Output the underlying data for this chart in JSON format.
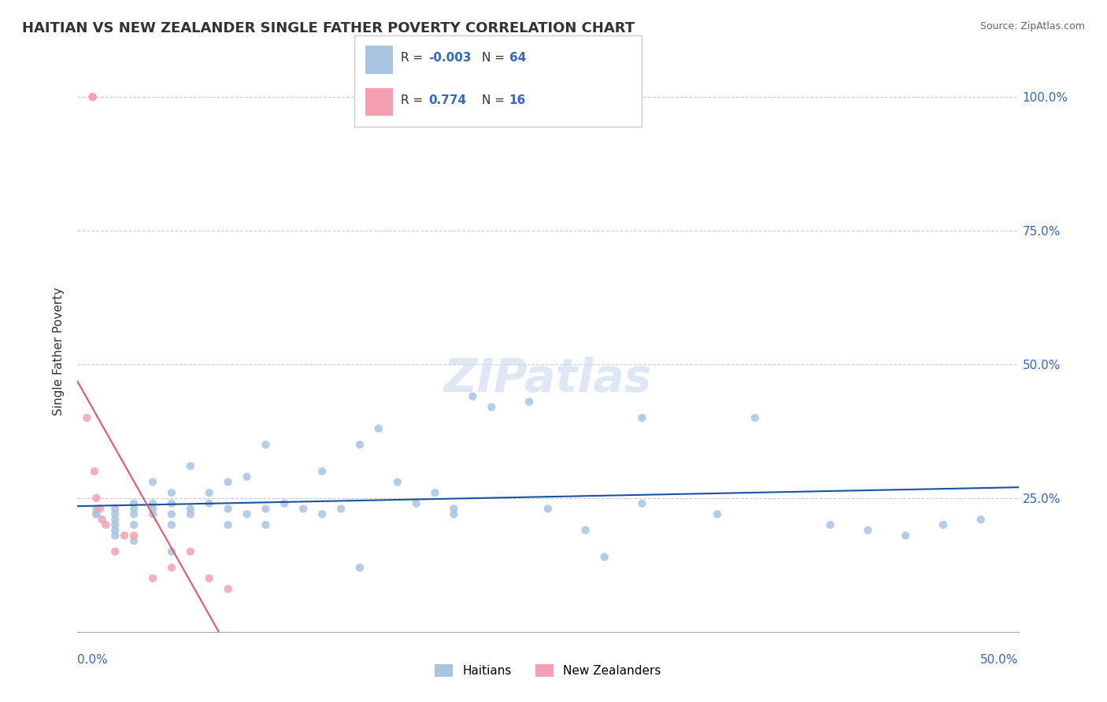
{
  "title": "HAITIAN VS NEW ZEALANDER SINGLE FATHER POVERTY CORRELATION CHART",
  "source": "Source: ZipAtlas.com",
  "ylabel": "Single Father Poverty",
  "xmin": 0.0,
  "xmax": 0.5,
  "ymin": 0.0,
  "ymax": 1.05,
  "yticks": [
    0.0,
    0.25,
    0.5,
    0.75,
    1.0
  ],
  "ytick_labels": [
    "",
    "25.0%",
    "50.0%",
    "75.0%",
    "100.0%"
  ],
  "haitians_color": "#a8c4e0",
  "new_zealanders_color": "#f4a0b0",
  "trend_haitians_color": "#1a52a0",
  "trend_nz_color": "#e8556a",
  "watermark": "ZIPatlas",
  "haitians_x": [
    0.01,
    0.01,
    0.01,
    0.02,
    0.02,
    0.02,
    0.02,
    0.02,
    0.02,
    0.03,
    0.03,
    0.03,
    0.03,
    0.03,
    0.04,
    0.04,
    0.04,
    0.04,
    0.05,
    0.05,
    0.05,
    0.05,
    0.05,
    0.06,
    0.06,
    0.06,
    0.07,
    0.07,
    0.08,
    0.08,
    0.08,
    0.09,
    0.09,
    0.1,
    0.1,
    0.1,
    0.11,
    0.12,
    0.13,
    0.13,
    0.14,
    0.15,
    0.15,
    0.16,
    0.17,
    0.18,
    0.19,
    0.2,
    0.2,
    0.21,
    0.22,
    0.24,
    0.25,
    0.27,
    0.28,
    0.3,
    0.3,
    0.34,
    0.36,
    0.4,
    0.42,
    0.44,
    0.46,
    0.48
  ],
  "haitians_y": [
    0.22,
    0.22,
    0.23,
    0.18,
    0.19,
    0.2,
    0.21,
    0.22,
    0.23,
    0.17,
    0.2,
    0.22,
    0.23,
    0.24,
    0.22,
    0.23,
    0.24,
    0.28,
    0.15,
    0.2,
    0.22,
    0.24,
    0.26,
    0.22,
    0.23,
    0.31,
    0.24,
    0.26,
    0.2,
    0.23,
    0.28,
    0.22,
    0.29,
    0.2,
    0.23,
    0.35,
    0.24,
    0.23,
    0.22,
    0.3,
    0.23,
    0.12,
    0.35,
    0.38,
    0.28,
    0.24,
    0.26,
    0.22,
    0.23,
    0.44,
    0.42,
    0.43,
    0.23,
    0.19,
    0.14,
    0.24,
    0.4,
    0.22,
    0.4,
    0.2,
    0.19,
    0.18,
    0.2,
    0.21
  ],
  "nz_x": [
    0.005,
    0.008,
    0.008,
    0.009,
    0.01,
    0.012,
    0.013,
    0.015,
    0.02,
    0.025,
    0.03,
    0.04,
    0.05,
    0.06,
    0.07,
    0.08
  ],
  "nz_y": [
    0.4,
    1.0,
    1.0,
    0.3,
    0.25,
    0.23,
    0.21,
    0.2,
    0.15,
    0.18,
    0.18,
    0.1,
    0.12,
    0.15,
    0.1,
    0.08
  ]
}
